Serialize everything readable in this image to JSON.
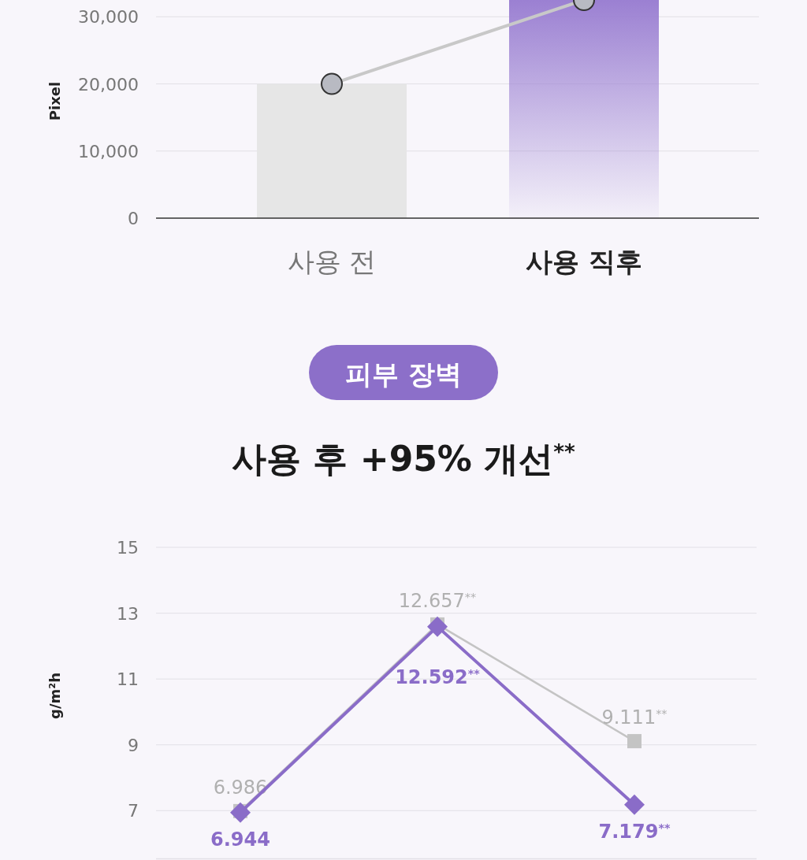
{
  "chart_data": [
    {
      "type": "bar",
      "ylabel": "Pixel",
      "categories": [
        "사용 전",
        "사용 직후"
      ],
      "ylim": [
        0,
        32500
      ],
      "yticks": [
        0,
        {
          "value": 10000,
          "label": "10,000"
        },
        {
          "value": 20000,
          "label": "20,000"
        },
        {
          "value": 30000,
          "label": "30,000"
        }
      ],
      "grid": "y",
      "series": [
        {
          "colors": [
            "#e6e6e6",
            "#9b80d2"
          ],
          "values": [
            20000,
            32500
          ]
        },
        {
          "type": "line",
          "color": "#c8c8c8",
          "marker": "circle",
          "values": [
            20000,
            32500
          ]
        }
      ]
    },
    {
      "type": "line",
      "title": "사용 후 +95% 개선$^{**}$",
      "annotations": [
        "피부 장벽"
      ],
      "ylabel": "g/m²h",
      "categories": [
        null,
        null,
        null
      ],
      "ylim": [
        5.5,
        15
      ],
      "yticks": [
        7,
        9,
        11,
        13,
        15
      ],
      "grid": "y",
      "series": [
        {
          "color": "#c4c4c4",
          "marker": "square",
          "values": [
            6.986,
            12.657,
            9.111
          ],
          "value_labels": [
            "6.986",
            "12.657$^{**}$",
            "9.111$^{**}$"
          ]
        },
        {
          "color": "#8a6cc8",
          "marker": "diamond",
          "values": [
            6.944,
            12.592,
            7.179
          ],
          "value_labels": [
            "6.944",
            "12.592$^{**}$",
            "7.179$^{**}$"
          ]
        }
      ]
    }
  ]
}
